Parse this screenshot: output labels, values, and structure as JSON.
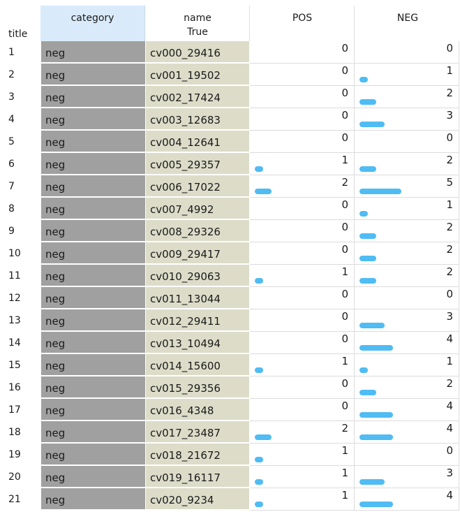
{
  "header": {
    "index_label": "title",
    "category_label": "category",
    "name_label": "name",
    "name_sublabel": "True",
    "pos_label": "POS",
    "neg_label": "NEG"
  },
  "colors": {
    "category_bg": "#a0a0a0",
    "name_bg": "#dcdcc9",
    "header_selected_bg": "#d9ebfb",
    "bar": "#4fbcf3"
  },
  "rows": [
    {
      "index": "1",
      "category": "neg",
      "name": "cv000_29416",
      "pos": 0,
      "neg": 0
    },
    {
      "index": "2",
      "category": "neg",
      "name": "cv001_19502",
      "pos": 0,
      "neg": 1
    },
    {
      "index": "3",
      "category": "neg",
      "name": "cv002_17424",
      "pos": 0,
      "neg": 2
    },
    {
      "index": "4",
      "category": "neg",
      "name": "cv003_12683",
      "pos": 0,
      "neg": 3
    },
    {
      "index": "5",
      "category": "neg",
      "name": "cv004_12641",
      "pos": 0,
      "neg": 0
    },
    {
      "index": "6",
      "category": "neg",
      "name": "cv005_29357",
      "pos": 1,
      "neg": 2
    },
    {
      "index": "7",
      "category": "neg",
      "name": "cv006_17022",
      "pos": 2,
      "neg": 5
    },
    {
      "index": "8",
      "category": "neg",
      "name": "cv007_4992",
      "pos": 0,
      "neg": 1
    },
    {
      "index": "9",
      "category": "neg",
      "name": "cv008_29326",
      "pos": 0,
      "neg": 2
    },
    {
      "index": "10",
      "category": "neg",
      "name": "cv009_29417",
      "pos": 0,
      "neg": 2
    },
    {
      "index": "11",
      "category": "neg",
      "name": "cv010_29063",
      "pos": 1,
      "neg": 2
    },
    {
      "index": "12",
      "category": "neg",
      "name": "cv011_13044",
      "pos": 0,
      "neg": 0
    },
    {
      "index": "13",
      "category": "neg",
      "name": "cv012_29411",
      "pos": 0,
      "neg": 3
    },
    {
      "index": "14",
      "category": "neg",
      "name": "cv013_10494",
      "pos": 0,
      "neg": 4
    },
    {
      "index": "15",
      "category": "neg",
      "name": "cv014_15600",
      "pos": 1,
      "neg": 1
    },
    {
      "index": "16",
      "category": "neg",
      "name": "cv015_29356",
      "pos": 0,
      "neg": 2
    },
    {
      "index": "17",
      "category": "neg",
      "name": "cv016_4348",
      "pos": 0,
      "neg": 4
    },
    {
      "index": "18",
      "category": "neg",
      "name": "cv017_23487",
      "pos": 2,
      "neg": 4
    },
    {
      "index": "19",
      "category": "neg",
      "name": "cv018_21672",
      "pos": 1,
      "neg": 0
    },
    {
      "index": "20",
      "category": "neg",
      "name": "cv019_16117",
      "pos": 1,
      "neg": 3
    },
    {
      "index": "21",
      "category": "neg",
      "name": "cv020_9234",
      "pos": 1,
      "neg": 4
    }
  ]
}
